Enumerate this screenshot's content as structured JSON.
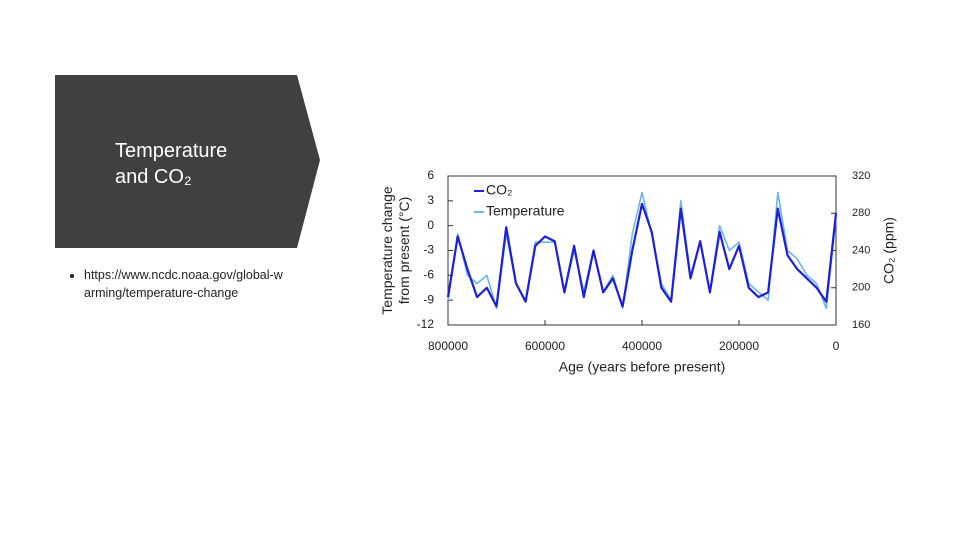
{
  "slide": {
    "title": "Temperature and CO₂",
    "bullet": "https://www.ncdc.noaa.gov/global-warming/temperature-change"
  },
  "chart_data": {
    "type": "line",
    "xlabel": "Age (years before present)",
    "ylabel": "Temperature change from present (°C)",
    "y2label": "CO₂ (ppm)",
    "x": [
      800000,
      780000,
      760000,
      740000,
      720000,
      700000,
      680000,
      660000,
      640000,
      620000,
      600000,
      580000,
      560000,
      540000,
      520000,
      500000,
      480000,
      460000,
      440000,
      420000,
      400000,
      380000,
      360000,
      340000,
      320000,
      300000,
      280000,
      260000,
      240000,
      220000,
      200000,
      180000,
      160000,
      140000,
      120000,
      100000,
      80000,
      60000,
      40000,
      20000,
      0
    ],
    "series": [
      {
        "name": "CO₂",
        "color": "#1f1fd6",
        "axis": "y2",
        "values": [
          190,
          255,
          220,
          190,
          200,
          180,
          265,
          205,
          185,
          245,
          255,
          250,
          195,
          245,
          190,
          240,
          195,
          210,
          180,
          240,
          290,
          260,
          200,
          185,
          285,
          210,
          250,
          195,
          260,
          220,
          245,
          200,
          190,
          195,
          285,
          235,
          220,
          210,
          200,
          185,
          280
        ]
      },
      {
        "name": "Temperature",
        "color": "#6cb6ea",
        "values": [
          -9,
          -1,
          -6,
          -7,
          -6,
          -10,
          -1,
          -7,
          -9,
          -2,
          -2,
          -2,
          -8,
          -3,
          -8,
          -3,
          -8,
          -6,
          -10,
          -1,
          4,
          -1,
          -7,
          -9,
          3,
          -6,
          -2,
          -8,
          0,
          -3,
          -2,
          -7,
          -8,
          -9,
          4,
          -3,
          -4,
          -6,
          -7,
          -10,
          1
        ]
      }
    ],
    "xlim": [
      800000,
      0
    ],
    "xticks": [
      800000,
      600000,
      400000,
      200000,
      0
    ],
    "ylim": [
      -12,
      6
    ],
    "yticks": [
      6,
      3,
      0,
      -3,
      -6,
      -9,
      -12
    ],
    "y2lim": [
      160,
      320
    ],
    "y2ticks": [
      320,
      280,
      240,
      200,
      160
    ],
    "legend": "upper left",
    "grid": false
  }
}
